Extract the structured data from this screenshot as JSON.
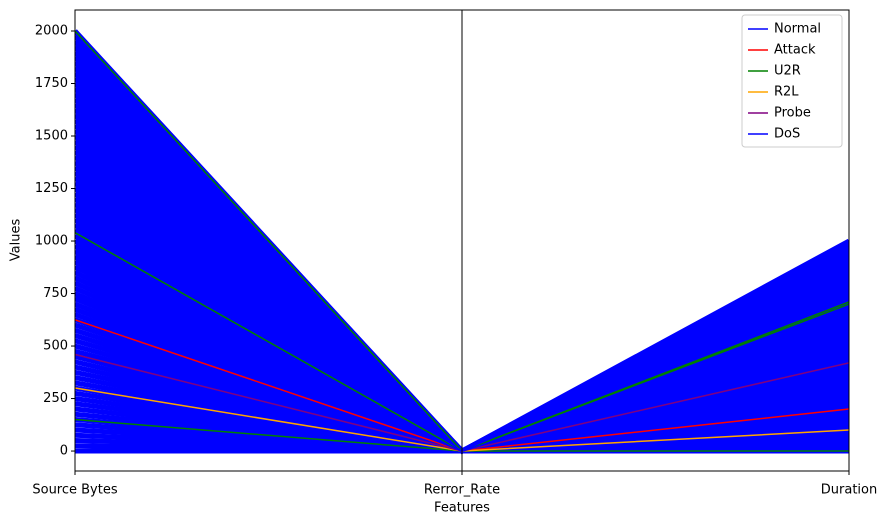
{
  "chart_data": {
    "type": "parallel",
    "xlabel": "Features",
    "ylabel": "Values",
    "categories": [
      "Source Bytes",
      "Rerror_Rate",
      "Duration"
    ],
    "ylim": [
      -95,
      2100
    ],
    "yticks": [
      0,
      250,
      500,
      750,
      1000,
      1250,
      1500,
      1750,
      2000
    ],
    "legend": "upper right",
    "series": [
      {
        "name": "Normal",
        "color": "#0000ff",
        "lines": [
          [
            0,
            0,
            0
          ],
          [
            25,
            0,
            12.5
          ],
          [
            50,
            0,
            25
          ],
          [
            75,
            0,
            37.5
          ],
          [
            100,
            0,
            50
          ],
          [
            125,
            0,
            62.5
          ],
          [
            150,
            0,
            75
          ],
          [
            175,
            0,
            87.5
          ],
          [
            200,
            0,
            100
          ],
          [
            225,
            0,
            112.5
          ],
          [
            250,
            0,
            125
          ],
          [
            275,
            0,
            137.5
          ],
          [
            300,
            0,
            150
          ],
          [
            325,
            0,
            162.5
          ],
          [
            350,
            0,
            175
          ],
          [
            375,
            0,
            187.5
          ],
          [
            400,
            0,
            200
          ],
          [
            425,
            0,
            212.5
          ],
          [
            450,
            0,
            225
          ],
          [
            475,
            0,
            237.5
          ],
          [
            500,
            0,
            250
          ],
          [
            525,
            0,
            262.5
          ],
          [
            550,
            0,
            275
          ],
          [
            575,
            0,
            287.5
          ],
          [
            600,
            0,
            300
          ],
          [
            625,
            0,
            312.5
          ],
          [
            650,
            0,
            325
          ],
          [
            675,
            0,
            337.5
          ],
          [
            700,
            0,
            350
          ],
          [
            725,
            0,
            362.5
          ],
          [
            750,
            0,
            375
          ],
          [
            775,
            0,
            387.5
          ],
          [
            800,
            0,
            400
          ],
          [
            825,
            0,
            412.5
          ],
          [
            850,
            0,
            425
          ],
          [
            875,
            0,
            437.5
          ],
          [
            900,
            0,
            450
          ],
          [
            925,
            0,
            462.5
          ],
          [
            950,
            0,
            475
          ],
          [
            975,
            0,
            487.5
          ],
          [
            1000,
            0,
            500
          ],
          [
            1025,
            0,
            512.5
          ],
          [
            1050,
            0,
            525
          ],
          [
            1075,
            0,
            537.5
          ],
          [
            1100,
            0,
            550
          ],
          [
            1125,
            0,
            562.5
          ],
          [
            1150,
            0,
            575
          ],
          [
            1175,
            0,
            587.5
          ],
          [
            1200,
            0,
            600
          ],
          [
            1225,
            0,
            612.5
          ],
          [
            1250,
            0,
            625
          ],
          [
            1275,
            0,
            637.5
          ],
          [
            1300,
            0,
            650
          ],
          [
            1325,
            0,
            662.5
          ],
          [
            1350,
            0,
            675
          ],
          [
            1375,
            0,
            687.5
          ],
          [
            1400,
            0,
            700
          ],
          [
            1425,
            0,
            712.5
          ],
          [
            1450,
            0,
            725
          ],
          [
            1475,
            0,
            737.5
          ],
          [
            1500,
            0,
            750
          ],
          [
            1525,
            0,
            762.5
          ],
          [
            1550,
            0,
            775
          ],
          [
            1575,
            0,
            787.5
          ],
          [
            1600,
            0,
            800
          ],
          [
            1625,
            0,
            812.5
          ],
          [
            1650,
            0,
            825
          ],
          [
            1675,
            0,
            837.5
          ],
          [
            1700,
            0,
            850
          ],
          [
            1725,
            0,
            862.5
          ],
          [
            1750,
            0,
            875
          ],
          [
            1775,
            0,
            887.5
          ],
          [
            1800,
            0,
            900
          ],
          [
            1825,
            0,
            912.5
          ],
          [
            1850,
            0,
            925
          ],
          [
            1875,
            0,
            937.5
          ],
          [
            1900,
            0,
            950
          ],
          [
            1925,
            0,
            962.5
          ],
          [
            1950,
            0,
            975
          ],
          [
            1975,
            0,
            987.5
          ],
          [
            2000,
            0,
            1000
          ]
        ]
      },
      {
        "name": "Attack",
        "color": "#ff0000",
        "lines": [
          [
            625,
            0,
            200
          ]
        ]
      },
      {
        "name": "U2R",
        "color": "#008000",
        "lines": [
          [
            2000,
            0,
            0
          ],
          [
            1040,
            0,
            710
          ],
          [
            150,
            0,
            700
          ]
        ]
      },
      {
        "name": "R2L",
        "color": "#ffa500",
        "lines": [
          [
            300,
            0,
            100
          ]
        ]
      },
      {
        "name": "Probe",
        "color": "#800080",
        "lines": [
          [
            460,
            0,
            420
          ]
        ]
      },
      {
        "name": "DoS",
        "color": "#0000ff",
        "lines": [
          [
            740,
            0,
            550
          ],
          [
            1200,
            0,
            800
          ]
        ]
      }
    ]
  }
}
